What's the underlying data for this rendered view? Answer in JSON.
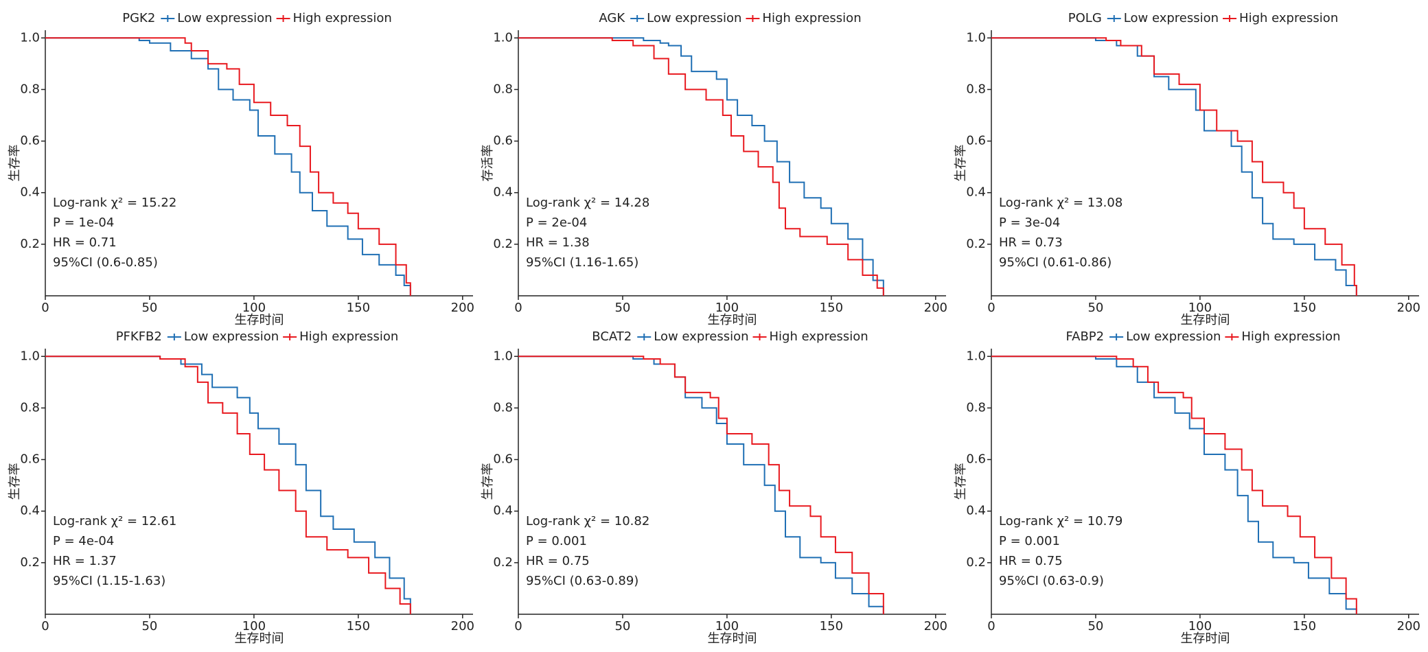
{
  "chart_data": [
    {
      "type": "line",
      "drawstyle": "steps-post",
      "legend_title": "PGK2",
      "xlabel": "生存时间",
      "ylabel": "生存率",
      "annotations": [
        "Log-rank  χ² = 15.22",
        "P = 1e-04",
        "HR = 0.71",
        "95%CI (0.6-0.85)"
      ],
      "xlim": [
        0,
        205
      ],
      "ylim": [
        0,
        1.03
      ],
      "xticks": [
        0,
        50,
        100,
        150,
        200
      ],
      "yticks": [
        0.2,
        0.4,
        0.6,
        0.8,
        {
          "value": 1,
          "label": "1.0"
        }
      ],
      "series": [
        {
          "name": "Low expression",
          "color": "#1f6fb4",
          "x": [
            0,
            45,
            50,
            60,
            70,
            78,
            83,
            90,
            98,
            102,
            110,
            118,
            122,
            128,
            135,
            145,
            152,
            160,
            168,
            172,
            175
          ],
          "values": [
            1,
            0.99,
            0.98,
            0.95,
            0.92,
            0.88,
            0.8,
            0.76,
            0.72,
            0.62,
            0.55,
            0.48,
            0.4,
            0.33,
            0.27,
            0.22,
            0.16,
            0.12,
            0.08,
            0.04,
            0
          ]
        },
        {
          "name": "High expression",
          "color": "#e8191f",
          "x": [
            0,
            67,
            70,
            78,
            87,
            93,
            100,
            108,
            116,
            122,
            127,
            131,
            138,
            145,
            150,
            160,
            168,
            173,
            175
          ],
          "values": [
            1,
            0.98,
            0.95,
            0.9,
            0.88,
            0.82,
            0.75,
            0.7,
            0.66,
            0.58,
            0.48,
            0.4,
            0.36,
            0.32,
            0.26,
            0.2,
            0.12,
            0.05,
            0
          ]
        }
      ]
    },
    {
      "type": "line",
      "drawstyle": "steps-post",
      "legend_title": "AGK",
      "xlabel": "生存时间",
      "ylabel": "存活率",
      "annotations": [
        "Log-rank  χ² = 14.28",
        "P = 2e-04",
        "HR = 1.38",
        "95%CI (1.16-1.65)"
      ],
      "xlim": [
        0,
        205
      ],
      "ylim": [
        0,
        1.03
      ],
      "xticks": [
        0,
        50,
        100,
        150,
        200
      ],
      "yticks": [
        0.2,
        0.4,
        0.6,
        0.8,
        {
          "value": 1,
          "label": "1.0"
        }
      ],
      "series": [
        {
          "name": "Low expression",
          "color": "#1f6fb4",
          "x": [
            0,
            60,
            68,
            72,
            78,
            83,
            95,
            100,
            105,
            112,
            118,
            124,
            130,
            137,
            145,
            150,
            158,
            165,
            170,
            175
          ],
          "values": [
            1,
            0.99,
            0.98,
            0.97,
            0.93,
            0.87,
            0.84,
            0.76,
            0.7,
            0.66,
            0.6,
            0.52,
            0.44,
            0.38,
            0.34,
            0.28,
            0.22,
            0.14,
            0.06,
            0
          ]
        },
        {
          "name": "High expression",
          "color": "#e8191f",
          "x": [
            0,
            45,
            55,
            65,
            72,
            80,
            90,
            98,
            102,
            108,
            115,
            122,
            125,
            128,
            135,
            148,
            158,
            165,
            172,
            175
          ],
          "values": [
            1,
            0.99,
            0.97,
            0.92,
            0.86,
            0.8,
            0.76,
            0.7,
            0.62,
            0.56,
            0.5,
            0.44,
            0.34,
            0.26,
            0.23,
            0.2,
            0.14,
            0.08,
            0.03,
            0
          ]
        }
      ]
    },
    {
      "type": "line",
      "drawstyle": "steps-post",
      "legend_title": "POLG",
      "xlabel": "生存时间",
      "ylabel": "生存率",
      "annotations": [
        "Log-rank  χ² = 13.08",
        "P = 3e-04",
        "HR = 0.73",
        "95%CI (0.61-0.86)"
      ],
      "xlim": [
        0,
        205
      ],
      "ylim": [
        0,
        1.03
      ],
      "xticks": [
        0,
        50,
        100,
        150,
        200
      ],
      "yticks": [
        0.2,
        0.4,
        0.6,
        0.8,
        {
          "value": 1,
          "label": "1.0"
        }
      ],
      "series": [
        {
          "name": "Low expression",
          "color": "#1f6fb4",
          "x": [
            0,
            50,
            60,
            70,
            78,
            85,
            98,
            102,
            115,
            120,
            125,
            130,
            135,
            145,
            155,
            165,
            170,
            175
          ],
          "values": [
            1,
            0.99,
            0.97,
            0.93,
            0.85,
            0.8,
            0.72,
            0.64,
            0.58,
            0.48,
            0.38,
            0.28,
            0.22,
            0.2,
            0.14,
            0.1,
            0.04,
            0
          ]
        },
        {
          "name": "High expression",
          "color": "#e8191f",
          "x": [
            0,
            55,
            62,
            72,
            78,
            90,
            100,
            108,
            118,
            125,
            130,
            140,
            145,
            150,
            160,
            168,
            174,
            175
          ],
          "values": [
            1,
            0.99,
            0.97,
            0.93,
            0.86,
            0.82,
            0.72,
            0.64,
            0.6,
            0.52,
            0.44,
            0.4,
            0.34,
            0.26,
            0.2,
            0.12,
            0.04,
            0
          ]
        }
      ]
    },
    {
      "type": "line",
      "drawstyle": "steps-post",
      "legend_title": "PFKFB2",
      "xlabel": "生存时间",
      "ylabel": "生存率",
      "annotations": [
        "Log-rank  χ² = 12.61",
        "P = 4e-04",
        "HR = 1.37",
        "95%CI (1.15-1.63)"
      ],
      "xlim": [
        0,
        205
      ],
      "ylim": [
        0,
        1.03
      ],
      "xticks": [
        0,
        50,
        100,
        150,
        200
      ],
      "yticks": [
        0.2,
        0.4,
        0.6,
        0.8,
        {
          "value": 1,
          "label": "1.0"
        }
      ],
      "series": [
        {
          "name": "Low expression",
          "color": "#1f6fb4",
          "x": [
            0,
            55,
            65,
            75,
            80,
            92,
            98,
            102,
            112,
            120,
            125,
            132,
            138,
            148,
            158,
            165,
            172,
            175
          ],
          "values": [
            1,
            0.99,
            0.97,
            0.93,
            0.88,
            0.84,
            0.78,
            0.72,
            0.66,
            0.58,
            0.48,
            0.38,
            0.33,
            0.28,
            0.22,
            0.14,
            0.06,
            0
          ]
        },
        {
          "name": "High expression",
          "color": "#e8191f",
          "x": [
            0,
            55,
            67,
            73,
            78,
            85,
            92,
            98,
            105,
            112,
            120,
            125,
            135,
            145,
            155,
            163,
            170,
            175
          ],
          "values": [
            1,
            0.99,
            0.96,
            0.9,
            0.82,
            0.78,
            0.7,
            0.62,
            0.56,
            0.48,
            0.4,
            0.3,
            0.25,
            0.22,
            0.16,
            0.1,
            0.04,
            0
          ]
        }
      ]
    },
    {
      "type": "line",
      "drawstyle": "steps-post",
      "legend_title": "BCAT2",
      "xlabel": "生存时间",
      "ylabel": "生存率",
      "annotations": [
        "Log-rank  χ² = 10.82",
        "P = 0.001",
        "HR = 0.75",
        "95%CI (0.63-0.89)"
      ],
      "xlim": [
        0,
        205
      ],
      "ylim": [
        0,
        1.03
      ],
      "xticks": [
        0,
        50,
        100,
        150,
        200
      ],
      "yticks": [
        0.2,
        0.4,
        0.6,
        0.8,
        {
          "value": 1,
          "label": "1.0"
        }
      ],
      "series": [
        {
          "name": "Low expression",
          "color": "#1f6fb4",
          "x": [
            0,
            55,
            65,
            75,
            80,
            88,
            95,
            100,
            108,
            118,
            123,
            128,
            135,
            145,
            152,
            160,
            168,
            175
          ],
          "values": [
            1,
            0.99,
            0.97,
            0.92,
            0.84,
            0.8,
            0.74,
            0.66,
            0.58,
            0.5,
            0.4,
            0.3,
            0.22,
            0.2,
            0.14,
            0.08,
            0.03,
            0
          ]
        },
        {
          "name": "High expression",
          "color": "#e8191f",
          "x": [
            0,
            60,
            68,
            75,
            80,
            92,
            96,
            100,
            112,
            120,
            125,
            130,
            140,
            145,
            152,
            160,
            168,
            175
          ],
          "values": [
            1,
            0.99,
            0.97,
            0.92,
            0.86,
            0.84,
            0.76,
            0.7,
            0.66,
            0.58,
            0.48,
            0.42,
            0.38,
            0.3,
            0.24,
            0.16,
            0.08,
            0
          ]
        }
      ]
    },
    {
      "type": "line",
      "drawstyle": "steps-post",
      "legend_title": "FABP2",
      "xlabel": "生存时间",
      "ylabel": "生存率",
      "annotations": [
        "Log-rank  χ² = 10.79",
        "P = 0.001",
        "HR = 0.75",
        "95%CI (0.63-0.9)"
      ],
      "xlim": [
        0,
        205
      ],
      "ylim": [
        0,
        1.03
      ],
      "xticks": [
        0,
        50,
        100,
        150,
        200
      ],
      "yticks": [
        0.2,
        0.4,
        0.6,
        0.8,
        {
          "value": 1,
          "label": "1.0"
        }
      ],
      "series": [
        {
          "name": "Low expression",
          "color": "#1f6fb4",
          "x": [
            0,
            50,
            60,
            70,
            78,
            88,
            95,
            102,
            112,
            118,
            123,
            128,
            135,
            145,
            152,
            162,
            170,
            175
          ],
          "values": [
            1,
            0.99,
            0.96,
            0.9,
            0.84,
            0.78,
            0.72,
            0.62,
            0.56,
            0.46,
            0.36,
            0.28,
            0.22,
            0.2,
            0.14,
            0.08,
            0.02,
            0
          ]
        },
        {
          "name": "High expression",
          "color": "#e8191f",
          "x": [
            0,
            60,
            68,
            75,
            80,
            92,
            96,
            102,
            112,
            120,
            125,
            130,
            142,
            148,
            155,
            163,
            170,
            175
          ],
          "values": [
            1,
            0.99,
            0.96,
            0.9,
            0.86,
            0.84,
            0.76,
            0.7,
            0.64,
            0.56,
            0.48,
            0.42,
            0.38,
            0.3,
            0.22,
            0.14,
            0.06,
            0
          ]
        }
      ]
    }
  ]
}
